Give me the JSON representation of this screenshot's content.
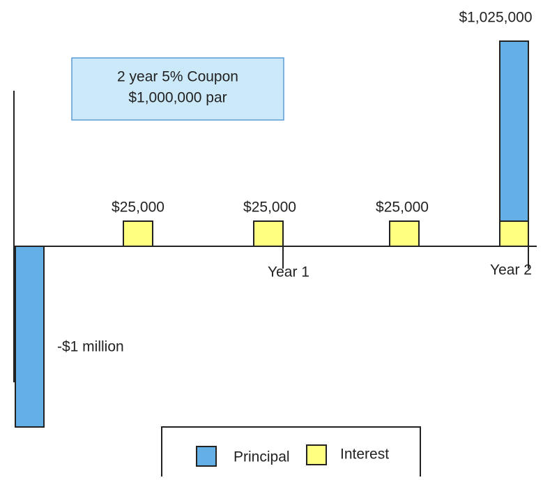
{
  "info_box": {
    "lines": [
      "2 year 5% Coupon",
      "$1,000,000 par"
    ]
  },
  "flows": {
    "interest_labels": [
      "$25,000",
      "$25,000",
      "$25,000"
    ],
    "final_label": "$1,025,000",
    "initial_label": "-$1 million"
  },
  "axis": {
    "periods": [
      "Year 1",
      "Year 2"
    ]
  },
  "legend": {
    "items": [
      "Principal",
      "Interest"
    ]
  }
}
